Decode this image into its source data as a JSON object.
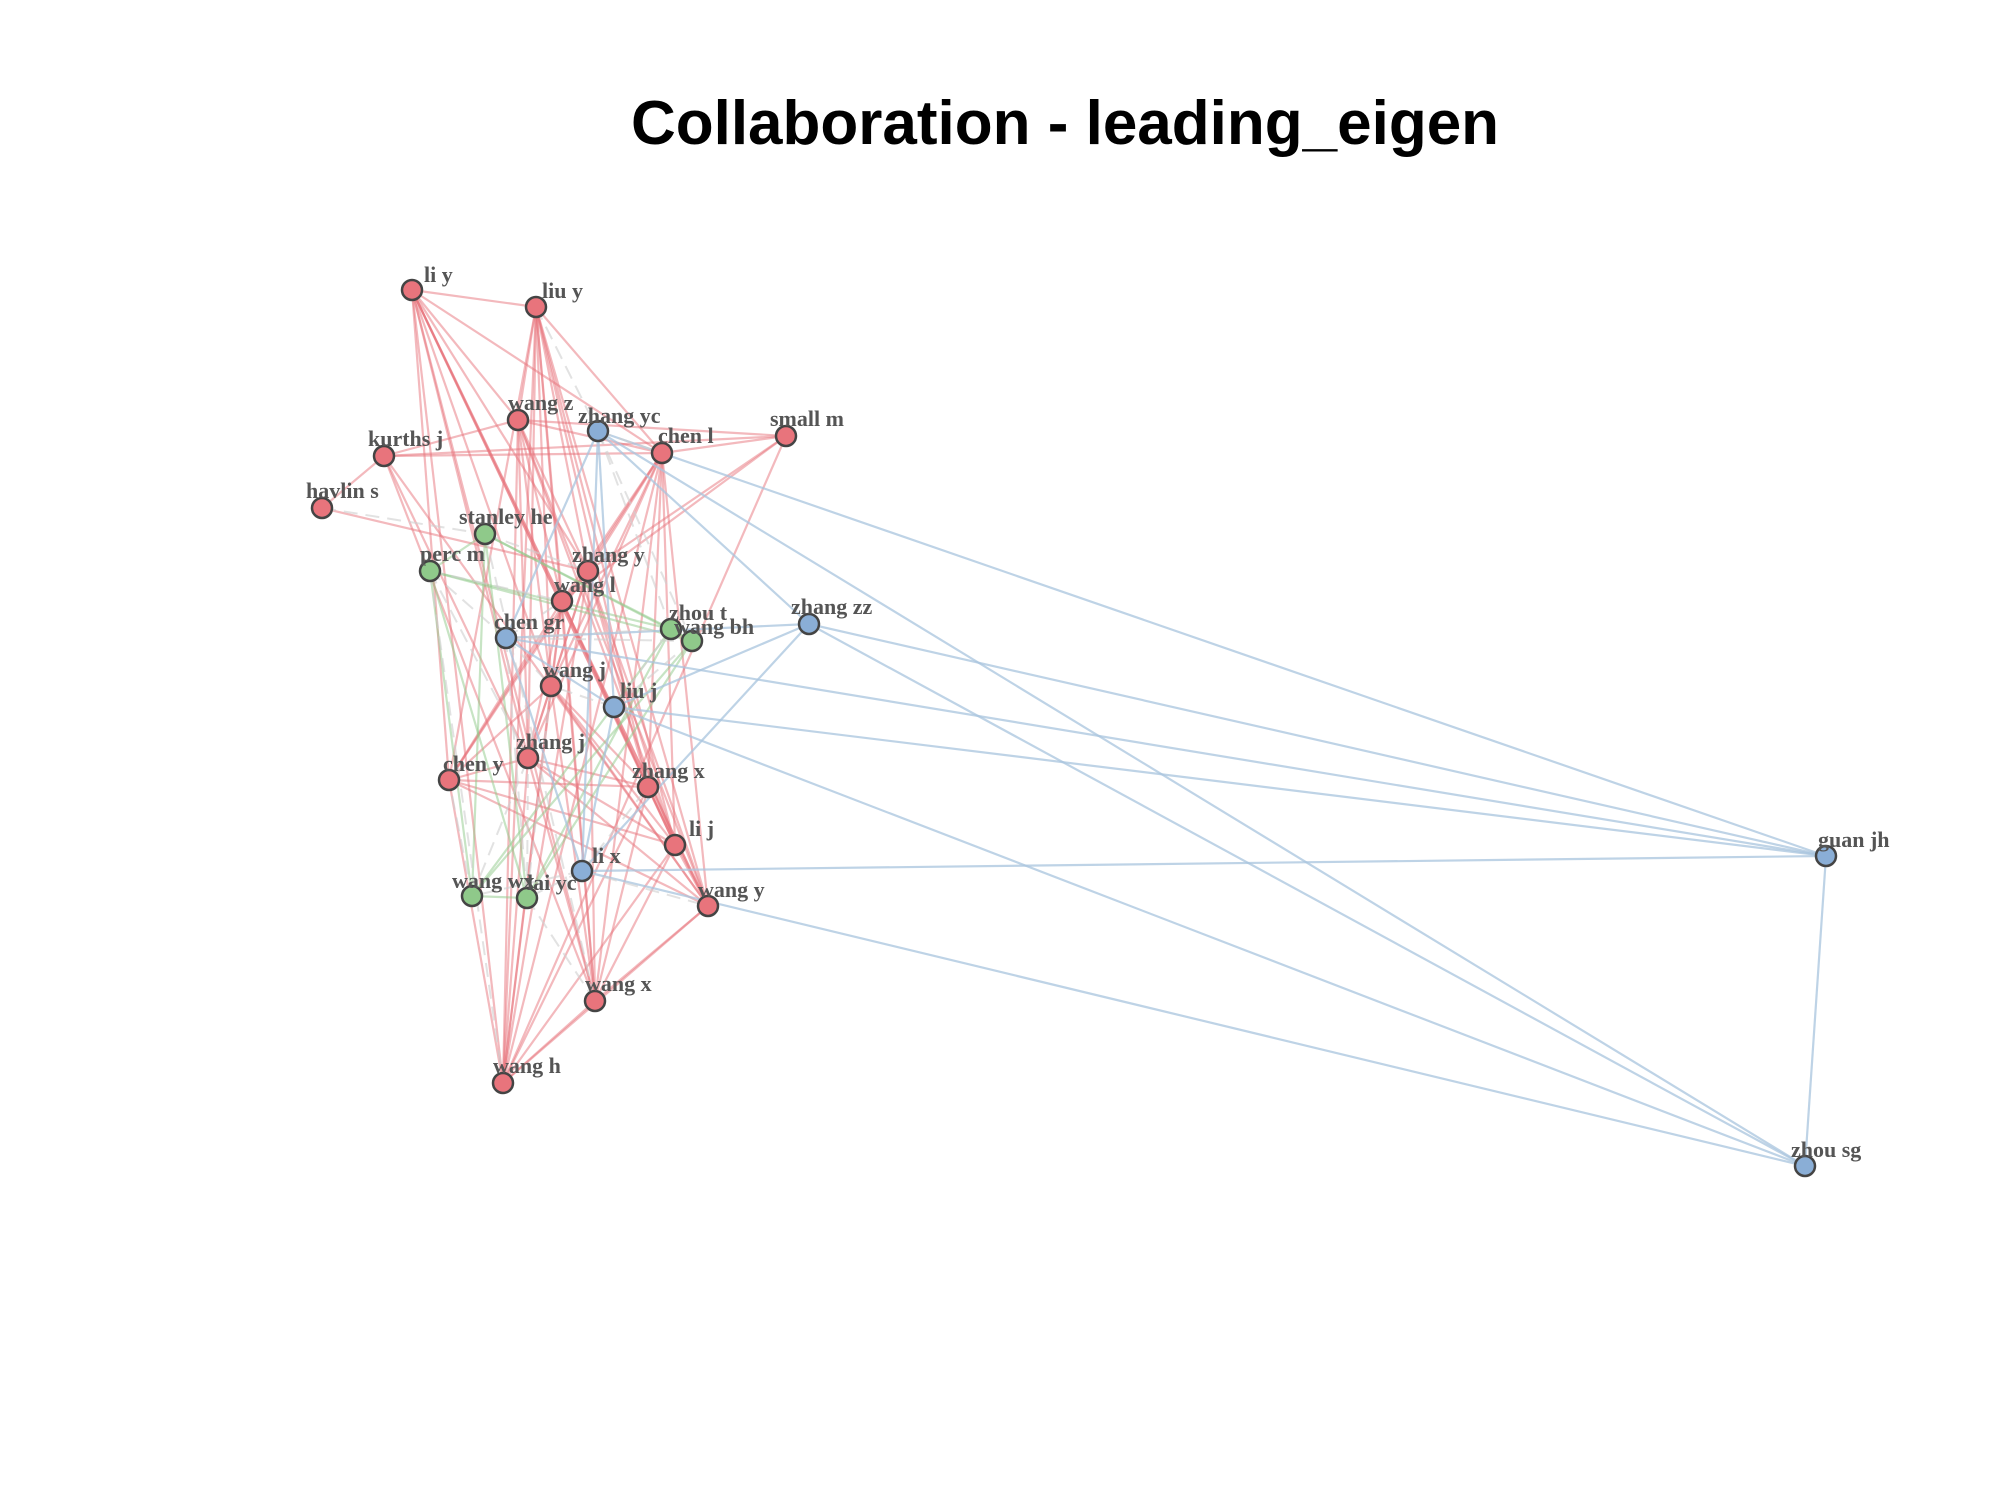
{
  "title": "Collaboration  - leading_eigen",
  "colors": {
    "group1": "#e8747c",
    "group2": "#8fc98a",
    "group3": "#8aaed6",
    "edge_group1": "#e8747c",
    "edge_group2": "#8fc98a",
    "edge_group3": "#a8c4de",
    "edge_between": "#cfcfcf",
    "node_border": "#444444",
    "label": "#555555"
  },
  "nodes": [
    {
      "id": "li y",
      "group": 1
    },
    {
      "id": "liu y",
      "group": 1
    },
    {
      "id": "wang z",
      "group": 1
    },
    {
      "id": "zhang yc",
      "group": 3
    },
    {
      "id": "small m",
      "group": 1
    },
    {
      "id": "kurths j",
      "group": 1
    },
    {
      "id": "chen l",
      "group": 1
    },
    {
      "id": "havlin s",
      "group": 1
    },
    {
      "id": "stanley he",
      "group": 2
    },
    {
      "id": "perc m",
      "group": 2
    },
    {
      "id": "zhang y",
      "group": 1
    },
    {
      "id": "wang l",
      "group": 1
    },
    {
      "id": "zhou t",
      "group": 2
    },
    {
      "id": "zhang zz",
      "group": 3
    },
    {
      "id": "chen gr",
      "group": 3
    },
    {
      "id": "wang bh",
      "group": 2
    },
    {
      "id": "wang j",
      "group": 1
    },
    {
      "id": "liu j",
      "group": 3
    },
    {
      "id": "zhang j",
      "group": 1
    },
    {
      "id": "chen y",
      "group": 1
    },
    {
      "id": "zhang x",
      "group": 1
    },
    {
      "id": "li j",
      "group": 1
    },
    {
      "id": "li x",
      "group": 3
    },
    {
      "id": "wang wx",
      "group": 2
    },
    {
      "id": "lai yc",
      "group": 2
    },
    {
      "id": "wang y",
      "group": 1
    },
    {
      "id": "wang x",
      "group": 1
    },
    {
      "id": "wang h",
      "group": 1
    },
    {
      "id": "guan jh",
      "group": 3
    },
    {
      "id": "zhou sg",
      "group": 3
    }
  ],
  "edges": [
    [
      "li y",
      "liu y"
    ],
    [
      "li y",
      "wang z"
    ],
    [
      "li y",
      "zhang y"
    ],
    [
      "li y",
      "wang l"
    ],
    [
      "li y",
      "wang j"
    ],
    [
      "li y",
      "zhang j"
    ],
    [
      "li y",
      "zhang x"
    ],
    [
      "li y",
      "li j"
    ],
    [
      "li y",
      "wang y"
    ],
    [
      "li y",
      "wang x"
    ],
    [
      "li y",
      "wang h"
    ],
    [
      "li y",
      "chen l"
    ],
    [
      "li y",
      "chen y"
    ],
    [
      "liu y",
      "wang z"
    ],
    [
      "liu y",
      "chen l"
    ],
    [
      "liu y",
      "zhang y"
    ],
    [
      "liu y",
      "wang l"
    ],
    [
      "liu y",
      "wang j"
    ],
    [
      "liu y",
      "zhang j"
    ],
    [
      "liu y",
      "zhang x"
    ],
    [
      "liu y",
      "li j"
    ],
    [
      "liu y",
      "wang y"
    ],
    [
      "liu y",
      "wang x"
    ],
    [
      "liu y",
      "wang h"
    ],
    [
      "liu y",
      "chen y"
    ],
    [
      "liu y",
      "zhang yc"
    ],
    [
      "wang z",
      "chen l"
    ],
    [
      "wang z",
      "zhang y"
    ],
    [
      "wang z",
      "wang l"
    ],
    [
      "wang z",
      "wang j"
    ],
    [
      "wang z",
      "zhang j"
    ],
    [
      "wang z",
      "li j"
    ],
    [
      "wang z",
      "wang y"
    ],
    [
      "wang z",
      "wang h"
    ],
    [
      "wang z",
      "kurths j"
    ],
    [
      "wang z",
      "small m"
    ],
    [
      "kurths j",
      "small m"
    ],
    [
      "kurths j",
      "chen l"
    ],
    [
      "kurths j",
      "wang x"
    ],
    [
      "kurths j",
      "zhang j"
    ],
    [
      "kurths j",
      "havlin s"
    ],
    [
      "kurths j",
      "wang y"
    ],
    [
      "small m",
      "wang l"
    ],
    [
      "small m",
      "zhang y"
    ],
    [
      "small m",
      "wang h"
    ],
    [
      "small m",
      "chen l"
    ],
    [
      "chen l",
      "zhang y"
    ],
    [
      "chen l",
      "wang l"
    ],
    [
      "chen l",
      "wang j"
    ],
    [
      "chen l",
      "zhang j"
    ],
    [
      "chen l",
      "zhang x"
    ],
    [
      "chen l",
      "li j"
    ],
    [
      "chen l",
      "wang y"
    ],
    [
      "chen l",
      "wang x"
    ],
    [
      "chen l",
      "wang h"
    ],
    [
      "chen l",
      "chen y"
    ],
    [
      "havlin s",
      "zhang y"
    ],
    [
      "havlin s",
      "stanley he"
    ],
    [
      "zhang y",
      "wang l"
    ],
    [
      "zhang y",
      "wang j"
    ],
    [
      "zhang y",
      "zhang j"
    ],
    [
      "zhang y",
      "zhang x"
    ],
    [
      "zhang y",
      "li j"
    ],
    [
      "zhang y",
      "wang y"
    ],
    [
      "zhang y",
      "wang x"
    ],
    [
      "zhang y",
      "wang h"
    ],
    [
      "zhang y",
      "chen y"
    ],
    [
      "wang l",
      "wang j"
    ],
    [
      "wang l",
      "zhang j"
    ],
    [
      "wang l",
      "zhang x"
    ],
    [
      "wang l",
      "li j"
    ],
    [
      "wang l",
      "wang y"
    ],
    [
      "wang l",
      "wang x"
    ],
    [
      "wang l",
      "wang h"
    ],
    [
      "wang l",
      "chen y"
    ],
    [
      "wang j",
      "zhang j"
    ],
    [
      "wang j",
      "zhang x"
    ],
    [
      "wang j",
      "li j"
    ],
    [
      "wang j",
      "wang y"
    ],
    [
      "wang j",
      "wang x"
    ],
    [
      "wang j",
      "wang h"
    ],
    [
      "wang j",
      "chen y"
    ],
    [
      "zhang j",
      "zhang x"
    ],
    [
      "zhang j",
      "li j"
    ],
    [
      "zhang j",
      "wang y"
    ],
    [
      "zhang j",
      "wang x"
    ],
    [
      "zhang j",
      "wang h"
    ],
    [
      "zhang j",
      "chen y"
    ],
    [
      "chen y",
      "zhang x"
    ],
    [
      "chen y",
      "li j"
    ],
    [
      "chen y",
      "wang y"
    ],
    [
      "chen y",
      "wang h"
    ],
    [
      "zhang x",
      "li j"
    ],
    [
      "zhang x",
      "wang y"
    ],
    [
      "zhang x",
      "wang x"
    ],
    [
      "zhang x",
      "wang h"
    ],
    [
      "li j",
      "wang y"
    ],
    [
      "li j",
      "wang x"
    ],
    [
      "li j",
      "wang h"
    ],
    [
      "wang y",
      "wang x"
    ],
    [
      "wang y",
      "wang h"
    ],
    [
      "wang x",
      "wang h"
    ],
    [
      "stanley he",
      "perc m"
    ],
    [
      "stanley he",
      "zhou t"
    ],
    [
      "stanley he",
      "wang bh"
    ],
    [
      "stanley he",
      "wang wx"
    ],
    [
      "stanley he",
      "lai yc"
    ],
    [
      "perc m",
      "wang wx"
    ],
    [
      "perc m",
      "lai yc"
    ],
    [
      "perc m",
      "wang bh"
    ],
    [
      "perc m",
      "zhou t"
    ],
    [
      "zhou t",
      "wang bh"
    ],
    [
      "zhou t",
      "wang wx"
    ],
    [
      "zhou t",
      "lai yc"
    ],
    [
      "wang bh",
      "wang wx"
    ],
    [
      "wang bh",
      "lai yc"
    ],
    [
      "wang wx",
      "lai yc"
    ],
    [
      "zhang yc",
      "guan jh"
    ],
    [
      "zhang yc",
      "zhou sg"
    ],
    [
      "zhang yc",
      "chen gr"
    ],
    [
      "zhang yc",
      "liu j"
    ],
    [
      "zhang yc",
      "li x"
    ],
    [
      "zhang yc",
      "zhang zz"
    ],
    [
      "zhang zz",
      "guan jh"
    ],
    [
      "zhang zz",
      "zhou sg"
    ],
    [
      "zhang zz",
      "liu j"
    ],
    [
      "zhang zz",
      "li x"
    ],
    [
      "zhang zz",
      "chen gr"
    ],
    [
      "chen gr",
      "guan jh"
    ],
    [
      "chen gr",
      "liu j"
    ],
    [
      "chen gr",
      "li x"
    ],
    [
      "liu j",
      "guan jh"
    ],
    [
      "liu j",
      "zhou sg"
    ],
    [
      "liu j",
      "li x"
    ],
    [
      "li x",
      "guan jh"
    ],
    [
      "li x",
      "zhou sg"
    ],
    [
      "guan jh",
      "zhou sg"
    ],
    [
      "chen gr",
      "zhou t"
    ],
    [
      "chen gr",
      "wang bh"
    ],
    [
      "chen gr",
      "perc m"
    ],
    [
      "chen gr",
      "lai yc"
    ],
    [
      "chen gr",
      "wang l"
    ],
    [
      "chen gr",
      "wang j"
    ],
    [
      "li x",
      "lai yc"
    ],
    [
      "li x",
      "wang wx"
    ],
    [
      "li x",
      "wang y"
    ],
    [
      "li x",
      "zhang x"
    ],
    [
      "liu j",
      "zhou t"
    ],
    [
      "liu j",
      "wang bh"
    ],
    [
      "liu j",
      "wang j"
    ],
    [
      "zhang yc",
      "zhou t"
    ],
    [
      "zhang yc",
      "wang bh"
    ],
    [
      "zhang yc",
      "chen l"
    ],
    [
      "lai yc",
      "wang j"
    ],
    [
      "lai yc",
      "zhang j"
    ],
    [
      "lai yc",
      "wang x"
    ],
    [
      "wang wx",
      "chen y"
    ],
    [
      "wang wx",
      "zhang j"
    ],
    [
      "perc m",
      "wang l"
    ],
    [
      "perc m",
      "wang h"
    ],
    [
      "perc m",
      "zhang j"
    ],
    [
      "stanley he",
      "wang x"
    ],
    [
      "stanley he",
      "zhang y"
    ]
  ]
}
